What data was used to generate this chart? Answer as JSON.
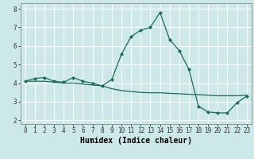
{
  "xlabel": "Humidex (Indice chaleur)",
  "ylabel": "",
  "xlim": [
    -0.5,
    23.5
  ],
  "ylim": [
    1.8,
    8.3
  ],
  "xticks": [
    0,
    1,
    2,
    3,
    4,
    5,
    6,
    7,
    8,
    9,
    10,
    11,
    12,
    13,
    14,
    15,
    16,
    17,
    18,
    19,
    20,
    21,
    22,
    23
  ],
  "yticks": [
    2,
    3,
    4,
    5,
    6,
    7,
    8
  ],
  "line1_x": [
    0,
    1,
    2,
    3,
    4,
    5,
    6,
    7,
    8,
    9,
    10,
    11,
    12,
    13,
    14,
    15,
    16,
    17,
    18,
    19,
    20,
    21,
    22,
    23
  ],
  "line1_y": [
    4.1,
    4.25,
    4.3,
    4.1,
    4.05,
    4.3,
    4.1,
    4.0,
    3.85,
    4.2,
    5.55,
    6.5,
    6.85,
    7.0,
    7.8,
    6.35,
    5.75,
    4.75,
    2.75,
    2.45,
    2.4,
    2.4,
    2.95,
    3.3
  ],
  "line2_x": [
    0,
    1,
    2,
    3,
    4,
    5,
    6,
    7,
    8,
    9,
    10,
    11,
    12,
    13,
    14,
    15,
    16,
    17,
    18,
    19,
    20,
    21,
    22,
    23
  ],
  "line2_y": [
    4.1,
    4.1,
    4.1,
    4.05,
    4.0,
    4.0,
    3.95,
    3.9,
    3.85,
    3.7,
    3.6,
    3.55,
    3.5,
    3.48,
    3.48,
    3.45,
    3.43,
    3.4,
    3.38,
    3.35,
    3.32,
    3.32,
    3.32,
    3.35
  ],
  "line_color": "#1a6b5a",
  "marker": "D",
  "marker_size": 2.0,
  "bg_color": "#cce8e8",
  "grid_color": "#ffffff",
  "tick_fontsize": 5.5,
  "label_fontsize": 7.0,
  "line_width": 0.9
}
